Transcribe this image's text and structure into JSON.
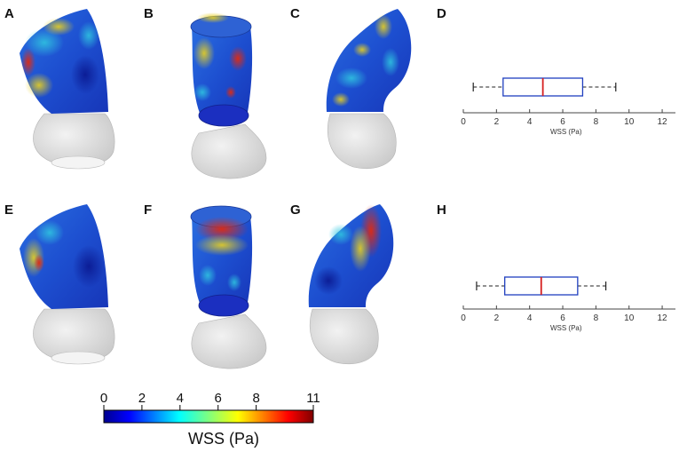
{
  "panels": [
    {
      "id": "A",
      "label": "A",
      "view": "curved-left"
    },
    {
      "id": "B",
      "label": "B",
      "view": "tube"
    },
    {
      "id": "C",
      "label": "C",
      "view": "curved-right"
    },
    {
      "id": "D",
      "label": "D"
    },
    {
      "id": "E",
      "label": "E",
      "view": "curved-left"
    },
    {
      "id": "F",
      "label": "F",
      "view": "tube"
    },
    {
      "id": "G",
      "label": "G",
      "view": "curved-right"
    },
    {
      "id": "H",
      "label": "H"
    }
  ],
  "chart_data": [
    {
      "type": "box",
      "panel": "D",
      "xlabel": "WSS (Pa)",
      "xlim": [
        0,
        12.8
      ],
      "xticks": [
        0,
        2,
        4,
        6,
        8,
        10,
        12
      ],
      "whisker_low": 0.6,
      "q1": 2.4,
      "median": 4.8,
      "q3": 7.2,
      "whisker_high": 9.2,
      "box_color": "#1f3fbf",
      "median_color": "#d62020"
    },
    {
      "type": "box",
      "panel": "H",
      "xlabel": "WSS (Pa)",
      "xlim": [
        0,
        12.8
      ],
      "xticks": [
        0,
        2,
        4,
        6,
        8,
        10,
        12
      ],
      "whisker_low": 0.8,
      "q1": 2.5,
      "median": 4.7,
      "q3": 6.9,
      "whisker_high": 8.6,
      "box_color": "#1f3fbf",
      "median_color": "#d62020"
    }
  ],
  "colorbar": {
    "title": "WSS (Pa)",
    "min": 0,
    "max": 11,
    "ticks": [
      0,
      2,
      4,
      6,
      8,
      11
    ],
    "colormap": "jet"
  }
}
